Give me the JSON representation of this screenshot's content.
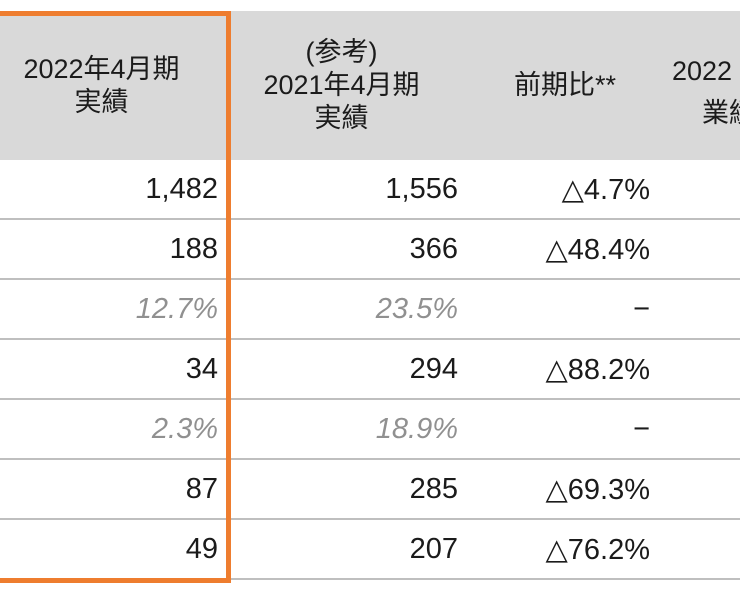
{
  "table": {
    "header": {
      "col1": [
        "2022年4月期",
        "実績"
      ],
      "col2": [
        "(参考)",
        "2021年4月期",
        "実績"
      ],
      "col3": [
        "前期比**"
      ],
      "col4": [
        "2022",
        "業績"
      ]
    },
    "rows": [
      {
        "c1": "1,482",
        "c2": "1,556",
        "c3": "△4.7%",
        "type": "value"
      },
      {
        "c1": "188",
        "c2": "366",
        "c3": "△48.4%",
        "type": "value"
      },
      {
        "c1": "12.7%",
        "c2": "23.5%",
        "c3": "−",
        "type": "margin"
      },
      {
        "c1": "34",
        "c2": "294",
        "c3": "△88.2%",
        "type": "value"
      },
      {
        "c1": "2.3%",
        "c2": "18.9%",
        "c3": "−",
        "type": "margin"
      },
      {
        "c1": "87",
        "c2": "285",
        "c3": "△69.3%",
        "type": "value"
      },
      {
        "c1": "49",
        "c2": "207",
        "c3": "△76.2%",
        "type": "value"
      }
    ],
    "colors": {
      "header_background": "#d9d9d9",
      "highlight_border": "#ee7d2f",
      "row_separator": "#bfbfbf",
      "muted_text": "#909090",
      "text": "#1b1b1b"
    }
  }
}
